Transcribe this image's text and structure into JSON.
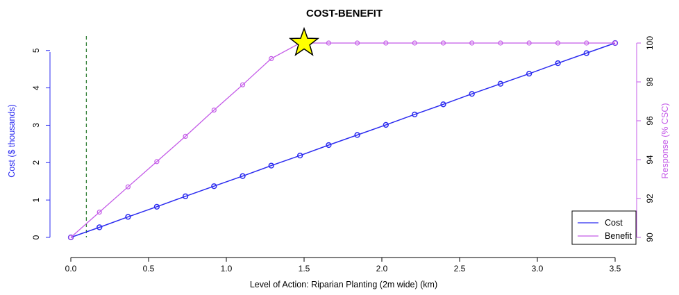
{
  "chart_data": {
    "type": "line",
    "title": "COST-BENEFIT",
    "xlabel": "Level of Action: Riparian Planting (2m wide) (km)",
    "ylabel_left": "Cost ($ thousands)",
    "ylabel_right": "Response (% CSC)",
    "xlim": [
      0,
      3.5
    ],
    "ylim_left": [
      0,
      5.2
    ],
    "ylim_right": [
      90,
      100
    ],
    "x_ticks": [
      "0.0",
      "0.5",
      "1.0",
      "1.5",
      "2.0",
      "2.5",
      "3.0",
      "3.5"
    ],
    "y_left_ticks": [
      "0",
      "1",
      "2",
      "3",
      "4",
      "5"
    ],
    "y_right_ticks": [
      "90",
      "92",
      "94",
      "96",
      "98",
      "100"
    ],
    "x": [
      0,
      0.184,
      0.368,
      0.553,
      0.737,
      0.921,
      1.105,
      1.289,
      1.474,
      1.658,
      1.842,
      2.026,
      2.211,
      2.395,
      2.579,
      2.763,
      2.947,
      3.132,
      3.316,
      3.5
    ],
    "series": [
      {
        "name": "Cost",
        "axis": "left",
        "color": "#2b2bf0",
        "values": [
          0,
          0.27,
          0.55,
          0.82,
          1.1,
          1.37,
          1.64,
          1.92,
          2.19,
          2.47,
          2.74,
          3.01,
          3.29,
          3.56,
          3.84,
          4.11,
          4.38,
          4.66,
          4.93,
          5.2
        ]
      },
      {
        "name": "Benefit",
        "axis": "right",
        "color": "#c45be8",
        "values": [
          90,
          91.3,
          92.6,
          93.9,
          95.2,
          96.55,
          97.85,
          99.2,
          100,
          100,
          100,
          100,
          100,
          100,
          100,
          100,
          100,
          100,
          100,
          100
        ]
      }
    ],
    "vline_x": 0.1,
    "vline_color": "#2e7d32",
    "star": {
      "x": 1.5,
      "y_right": 100,
      "color": "#ffff00"
    },
    "legend_position": "bottom-right",
    "colors": {
      "left_axis": "#2b2bf0",
      "right_axis": "#c45be8"
    }
  }
}
